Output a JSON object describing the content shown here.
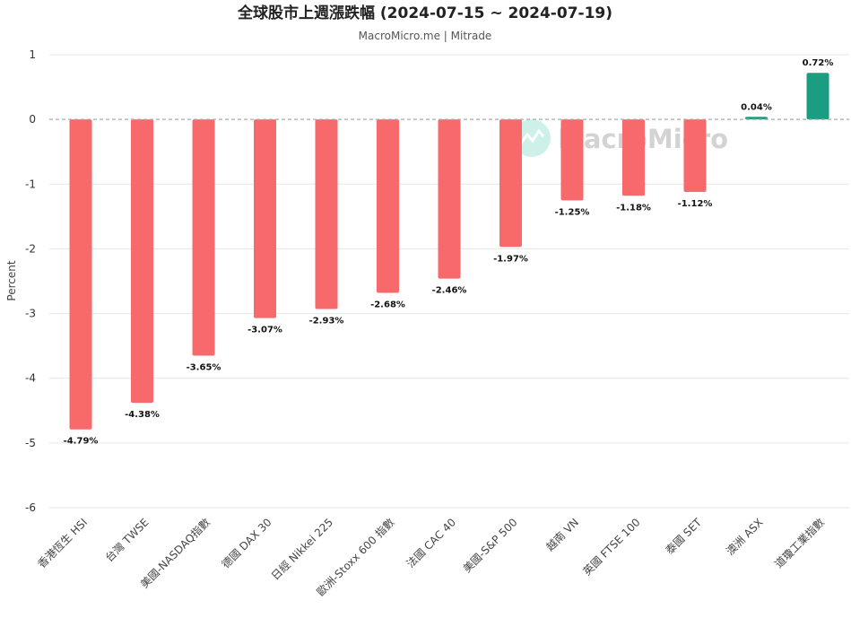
{
  "chart_data": {
    "type": "bar",
    "title": "全球股市上週漲跌幅 (2024-07-15 ~ 2024-07-19)",
    "subtitle": "MacroMicro.me | Mitrade",
    "ylabel": "Percent",
    "xlabel": "",
    "ylim": [
      -6,
      1
    ],
    "yticks": [
      1,
      0,
      -1,
      -2,
      -3,
      -4,
      -5,
      -6
    ],
    "grid": true,
    "categories": [
      "香港恆生 HSI",
      "台灣 TWSE",
      "美國-NASDAQ指數",
      "德國 DAX 30",
      "日經 Nikkei 225",
      "歐洲-Stoxx 600 指數",
      "法國 CAC 40",
      "美國-S&P 500",
      "越南 VN",
      "英國 FTSE 100",
      "泰國 SET",
      "澳洲 ASX",
      "道瓊工業指數"
    ],
    "values": [
      -4.79,
      -4.38,
      -3.65,
      -3.07,
      -2.93,
      -2.68,
      -2.46,
      -1.97,
      -1.25,
      -1.18,
      -1.12,
      0.04,
      0.72
    ],
    "data_labels": [
      "-4.79%",
      "-4.38%",
      "-3.65%",
      "-3.07%",
      "-2.93%",
      "-2.68%",
      "-2.46%",
      "-1.97%",
      "-1.25%",
      "-1.18%",
      "-1.12%",
      "0.04%",
      "0.72%"
    ],
    "colors": {
      "negative": "#f8696b",
      "positive": "#1a9d80",
      "zero_line": "#aaaaaa",
      "grid": "#e6e6e6",
      "watermark_icon": "#c8efe6"
    },
    "watermark": "MacroMicro"
  }
}
